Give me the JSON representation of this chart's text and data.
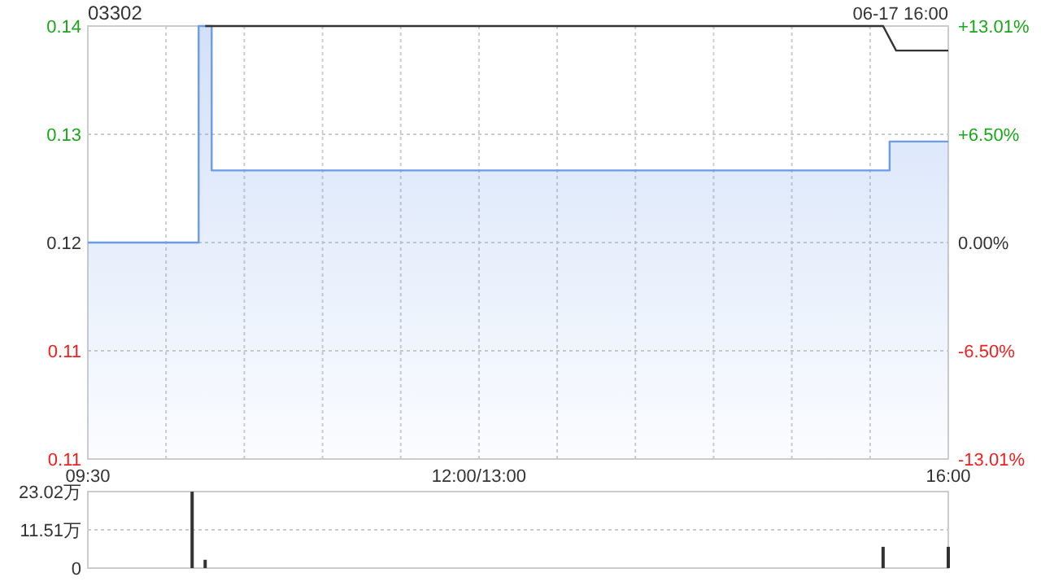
{
  "chart_data": [
    {
      "type": "area",
      "title": "03302",
      "annotations": [
        "06-17 16:00"
      ],
      "categories": [
        "09:30",
        null,
        null,
        null,
        null,
        null,
        null,
        null,
        null,
        null,
        null,
        null,
        null,
        null,
        null,
        null,
        null,
        null,
        null,
        null,
        null,
        null,
        null,
        null,
        null,
        null,
        null,
        null,
        null,
        null,
        "12:00/13:00",
        null,
        null,
        null,
        null,
        null,
        null,
        null,
        null,
        null,
        null,
        null,
        null,
        null,
        null,
        null,
        null,
        null,
        null,
        null,
        null,
        null,
        null,
        null,
        null,
        null,
        null,
        null,
        null,
        null,
        null,
        null,
        null,
        null,
        null,
        null,
        "16:00"
      ],
      "ylim": [
        0.105,
        0.135
      ],
      "yticks": [
        {
          "value": 0.135,
          "label": "0.14"
        },
        {
          "value": 0.1275,
          "label": "0.13"
        },
        0.12,
        {
          "value": 0.1125,
          "label": "0.11"
        },
        {
          "value": 0.105,
          "label": "0.11"
        }
      ],
      "y2lim": [
        -13.01,
        13.01
      ],
      "y2ticks": [
        {
          "value": 13.01,
          "label": "+13.01%"
        },
        {
          "value": 6.5,
          "label": "+6.50%"
        },
        {
          "value": 0,
          "label": "0.00%"
        },
        {
          "value": -6.5,
          "label": "-6.50%"
        },
        {
          "value": -13.01,
          "label": "-13.01%"
        }
      ],
      "grid": true,
      "series": [
        {
          "color": "#6b9bea",
          "values": [
            0.12,
            0.12,
            0.12,
            0.12,
            0.12,
            0.12,
            0.12,
            0.12,
            0.12,
            0.135,
            0.125,
            0.125,
            0.125,
            0.125,
            0.125,
            0.125,
            0.125,
            0.125,
            0.125,
            0.125,
            0.125,
            0.125,
            0.125,
            0.125,
            0.125,
            0.125,
            0.125,
            0.125,
            0.125,
            0.125,
            0.125,
            0.125,
            0.125,
            0.125,
            0.125,
            0.125,
            0.125,
            0.125,
            0.125,
            0.125,
            0.125,
            0.125,
            0.125,
            0.125,
            0.125,
            0.125,
            0.125,
            0.125,
            0.125,
            0.125,
            0.125,
            0.125,
            0.125,
            0.125,
            0.125,
            0.125,
            0.125,
            0.125,
            0.125,
            0.125,
            0.125,
            0.125,
            0.127,
            0.127,
            0.127,
            0.127,
            0.127
          ]
        },
        {
          "type": "line",
          "color": "#333333",
          "values": [
            null,
            null,
            null,
            null,
            null,
            null,
            null,
            null,
            null,
            0.135,
            0.135,
            0.135,
            0.135,
            0.135,
            0.135,
            0.135,
            0.135,
            0.135,
            0.135,
            0.135,
            0.135,
            0.135,
            0.135,
            0.135,
            0.135,
            0.135,
            0.135,
            0.135,
            0.135,
            0.135,
            0.135,
            0.135,
            0.135,
            0.135,
            0.135,
            0.135,
            0.135,
            0.135,
            0.135,
            0.135,
            0.135,
            0.135,
            0.135,
            0.135,
            0.135,
            0.135,
            0.135,
            0.135,
            0.135,
            0.135,
            0.135,
            0.135,
            0.135,
            0.135,
            0.135,
            0.135,
            0.135,
            0.135,
            0.135,
            0.135,
            0.135,
            0.135,
            0.1333,
            0.1333,
            0.1333,
            0.1333,
            0.1333
          ]
        }
      ]
    },
    {
      "type": "bar",
      "ylim": [
        0,
        23.02
      ],
      "yticks": [
        0,
        {
          "value": 11.51,
          "label": "11.51万"
        },
        {
          "value": 23.02,
          "label": "23.02万"
        }
      ],
      "grid": "y",
      "tick_labels": "y",
      "color": "#333333",
      "categories": [
        null,
        null,
        null,
        null,
        null,
        null,
        null,
        null,
        null,
        null,
        null,
        null,
        null,
        null,
        null,
        null,
        null,
        null,
        null,
        null,
        null,
        null,
        null,
        null,
        null,
        null,
        null,
        null,
        null,
        null,
        null,
        null,
        null,
        null,
        null,
        null,
        null,
        null,
        null,
        null,
        null,
        null,
        null,
        null,
        null,
        null,
        null,
        null,
        null,
        null,
        null,
        null,
        null,
        null,
        null,
        null,
        null,
        null,
        null,
        null,
        null,
        null,
        null,
        null,
        null,
        null,
        null
      ],
      "values": [
        null,
        null,
        null,
        null,
        null,
        null,
        null,
        null,
        23.0,
        2.5,
        null,
        null,
        null,
        null,
        null,
        null,
        null,
        null,
        null,
        null,
        null,
        null,
        null,
        null,
        null,
        null,
        null,
        null,
        null,
        null,
        null,
        null,
        null,
        null,
        null,
        null,
        null,
        null,
        null,
        null,
        null,
        null,
        null,
        null,
        null,
        null,
        null,
        null,
        null,
        null,
        null,
        null,
        null,
        null,
        null,
        null,
        null,
        null,
        null,
        null,
        null,
        6.4,
        null,
        null,
        null,
        null,
        6.4
      ]
    }
  ]
}
